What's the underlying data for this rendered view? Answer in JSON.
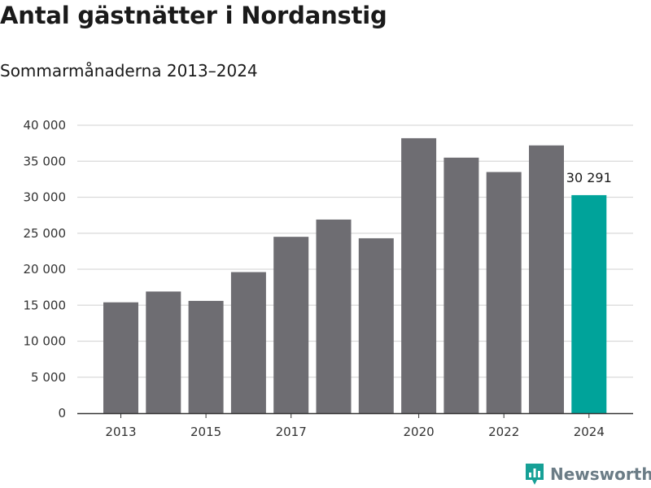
{
  "title": "Antal gästnätter i Nordanstig",
  "subtitle": "Sommarmånaderna 2013–2024",
  "brand": {
    "name": "Newsworthy",
    "icon": "bar-chart-logo-icon",
    "color": "#16a096"
  },
  "chart_data": {
    "type": "bar",
    "categories": [
      "2013",
      "2014",
      "2015",
      "2016",
      "2017",
      "2018",
      "2019",
      "2020",
      "2021",
      "2022",
      "2023",
      "2024"
    ],
    "values": [
      15400,
      16900,
      15600,
      19600,
      24500,
      26900,
      24300,
      38200,
      35500,
      33500,
      37200,
      30291
    ],
    "x_tick_labels": [
      "2013",
      "2015",
      "2017",
      "2020",
      "2022",
      "2024"
    ],
    "y_ticks": [
      0,
      5000,
      10000,
      15000,
      20000,
      25000,
      30000,
      35000,
      40000
    ],
    "y_tick_labels": [
      "0",
      "5 000",
      "10 000",
      "15 000",
      "20 000",
      "25 000",
      "30 000",
      "35 000",
      "40 000"
    ],
    "ylim": [
      0,
      40000
    ],
    "highlight": {
      "category": "2024",
      "label": "30 291",
      "color": "#00a39a"
    },
    "bar_color": "#6e6d72",
    "grid": true
  }
}
